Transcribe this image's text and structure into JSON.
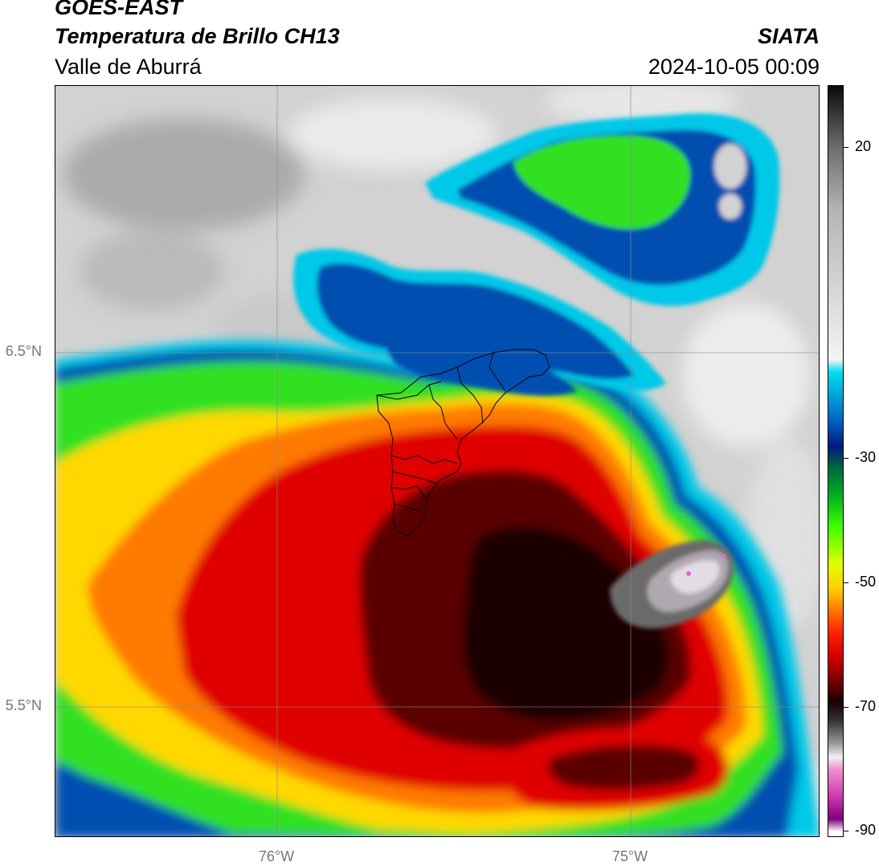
{
  "header": {
    "title_line1": "GOES-EAST",
    "title_line2": "Temperatura de Brillo CH13",
    "region": "Valle de Aburrá",
    "organization": "SIATA",
    "datetime": "2024-10-05 00:09"
  },
  "axes": {
    "lat_ticks": [
      {
        "label": "6.5°N",
        "value": 6.5
      },
      {
        "label": "5.5°N",
        "value": 5.5
      }
    ],
    "lon_ticks": [
      {
        "label": "76°W",
        "value": -76.0
      },
      {
        "label": "75°W",
        "value": -75.0
      }
    ]
  },
  "colorbar": {
    "ticks": [
      {
        "label": "20",
        "value": 20
      },
      {
        "label": "-30",
        "value": -30
      },
      {
        "label": "-50",
        "value": -50
      },
      {
        "label": "-70",
        "value": -70
      },
      {
        "label": "-90",
        "value": -90
      }
    ],
    "stops": [
      {
        "value": 30,
        "color": "#0a0a0a"
      },
      {
        "value": 20,
        "color": "#6e6e6e"
      },
      {
        "value": 10,
        "color": "#b4b4b4"
      },
      {
        "value": -14,
        "color": "#f4f4f4"
      },
      {
        "value": -16,
        "color": "#00e0f0"
      },
      {
        "value": -24,
        "color": "#0060c0"
      },
      {
        "value": -28,
        "color": "#001a80"
      },
      {
        "value": -31,
        "color": "#006040"
      },
      {
        "value": -36,
        "color": "#00b020"
      },
      {
        "value": -41,
        "color": "#40ff00"
      },
      {
        "value": -47,
        "color": "#e0ff00"
      },
      {
        "value": -51,
        "color": "#ffcc00"
      },
      {
        "value": -54,
        "color": "#ff8000"
      },
      {
        "value": -58,
        "color": "#ff2000"
      },
      {
        "value": -62,
        "color": "#d00000"
      },
      {
        "value": -66,
        "color": "#700000"
      },
      {
        "value": -69,
        "color": "#1a0000"
      },
      {
        "value": -72,
        "color": "#303030"
      },
      {
        "value": -76,
        "color": "#a0a0a0"
      },
      {
        "value": -78,
        "color": "#f0f0f0"
      },
      {
        "value": -80,
        "color": "#f090d0"
      },
      {
        "value": -84,
        "color": "#d040b0"
      },
      {
        "value": -88,
        "color": "#800080"
      },
      {
        "value": -90,
        "color": "#ffffff"
      }
    ]
  },
  "colors": {
    "clear": "#d2d2d2",
    "cloud_edge": "#00c8e8",
    "cloud_blue": "#0050b0",
    "green": "#30e020",
    "yellow": "#ffd800",
    "red": "#e00000",
    "dark": "#1a0000",
    "overshoot": "#c8c0c8",
    "pink": "#f060d0",
    "boundary": "#000000"
  }
}
